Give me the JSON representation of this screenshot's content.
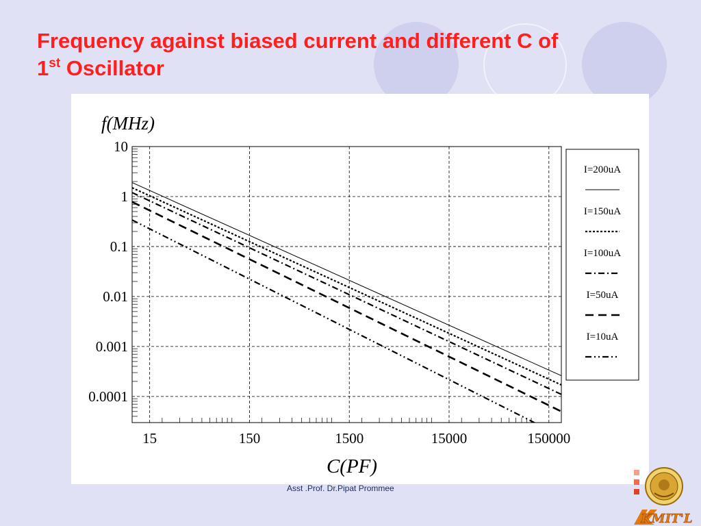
{
  "slide": {
    "title_line1": "Frequency against biased current and different C of",
    "title_line2_main": "1",
    "title_line2_sup": "st",
    "title_line2_rest": " Oscillator",
    "footer": "Asst .Prof. Dr.Pipat Prommee",
    "logo_text": "KMIT'L",
    "colors": {
      "title": "#ff1f1f",
      "background": "#e1e1f5",
      "footer": "#1b2b5b"
    }
  },
  "chart_data": {
    "type": "line",
    "xlabel": "C(PF)",
    "ylabel": "f(MHz)",
    "xscale": "log",
    "yscale": "log",
    "xlim": [
      10,
      200000
    ],
    "ylim": [
      3e-05,
      10
    ],
    "xticks": [
      15,
      150,
      1500,
      15000,
      150000
    ],
    "xtick_labels": [
      "15",
      "150",
      "1500",
      "15000",
      "150000"
    ],
    "yticks": [
      10,
      1,
      0.1,
      0.01,
      0.001,
      0.0001
    ],
    "ytick_labels": [
      "10",
      "1",
      "0.1",
      "0.01",
      "0.001",
      "0.0001"
    ],
    "grid": true,
    "legend_position": "right",
    "series": [
      {
        "name": "I=200uA",
        "style": "solid",
        "x": [
          10,
          200000
        ],
        "y": [
          1.9,
          0.00026
        ]
      },
      {
        "name": "I=150uA",
        "style": "dotted",
        "x": [
          10,
          200000
        ],
        "y": [
          1.5,
          0.00017
        ]
      },
      {
        "name": "I=100uA",
        "style": "dash-dot",
        "x": [
          10,
          200000
        ],
        "y": [
          1.2,
          0.00011
        ]
      },
      {
        "name": "I=50uA",
        "style": "dash",
        "x": [
          10,
          200000
        ],
        "y": [
          0.78,
          5e-05
        ]
      },
      {
        "name": "I=10uA",
        "style": "dash-dot-dot",
        "x": [
          10,
          200000
        ],
        "y": [
          0.34,
          1.6e-05
        ]
      }
    ]
  }
}
